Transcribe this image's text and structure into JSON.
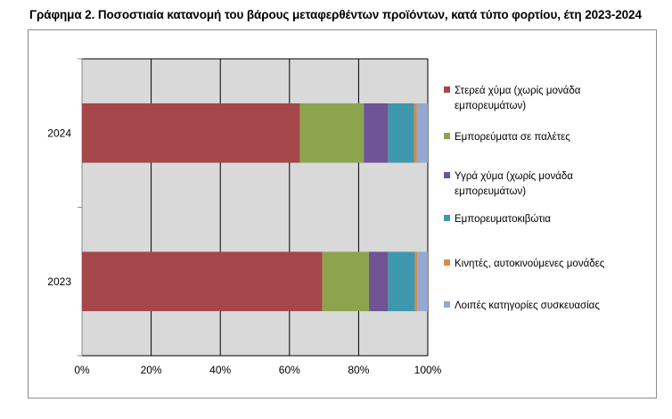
{
  "title": "Γράφημα 2. Ποσοστιαία κατανομή του βάρους μεταφερθέντων προϊόντων, κατά τύπο φορτίου, έτη 2023-2024",
  "chart_data": {
    "type": "bar",
    "orientation": "horizontal",
    "stacked": true,
    "percent": true,
    "categories": [
      "2024",
      "2023"
    ],
    "series": [
      {
        "name": "Στερεά χύμα (χωρίς μονάδα εμπορευμάτων)",
        "legend_lines": [
          "Στερεά χύμα (χωρίς μονάδα",
          "εμπορευμάτων)"
        ],
        "color": "#A5474A",
        "values": [
          63,
          69.5
        ]
      },
      {
        "name": "Εμπορεύματα σε παλέτες",
        "legend_lines": [
          "Εμπορεύματα σε παλέτες"
        ],
        "color": "#8DA44F",
        "values": [
          18.5,
          13.5
        ]
      },
      {
        "name": "Υγρά χύμα (χωρίς μονάδα εμπορευμάτων)",
        "legend_lines": [
          "Υγρά χύμα (χωρίς μονάδα",
          "εμπορευμάτων)"
        ],
        "color": "#6E5395",
        "values": [
          7,
          5.5
        ]
      },
      {
        "name": "Εμπορευματοκιβώτια",
        "legend_lines": [
          "Εμπορευματοκιβώτια"
        ],
        "color": "#3F97AE",
        "values": [
          7.5,
          7.8
        ]
      },
      {
        "name": "Κινητές, αυτοκινούμενες μονάδες",
        "legend_lines": [
          "Κινητές, αυτοκινούμενες μονάδες"
        ],
        "color": "#DC8A45",
        "values": [
          0.8,
          0.7
        ]
      },
      {
        "name": "Λοιπές κατηγορίες συσκευασίας",
        "legend_lines": [
          "Λοιπές κατηγορίες συσκευασίας"
        ],
        "color": "#93A9D3",
        "values": [
          3.2,
          3.0
        ]
      }
    ],
    "x_ticks": [
      "0%",
      "20%",
      "40%",
      "60%",
      "80%",
      "100%"
    ],
    "xlim": [
      0,
      100
    ],
    "grid": true,
    "plot_background": "#D9D9D9",
    "legend_position": "right"
  }
}
